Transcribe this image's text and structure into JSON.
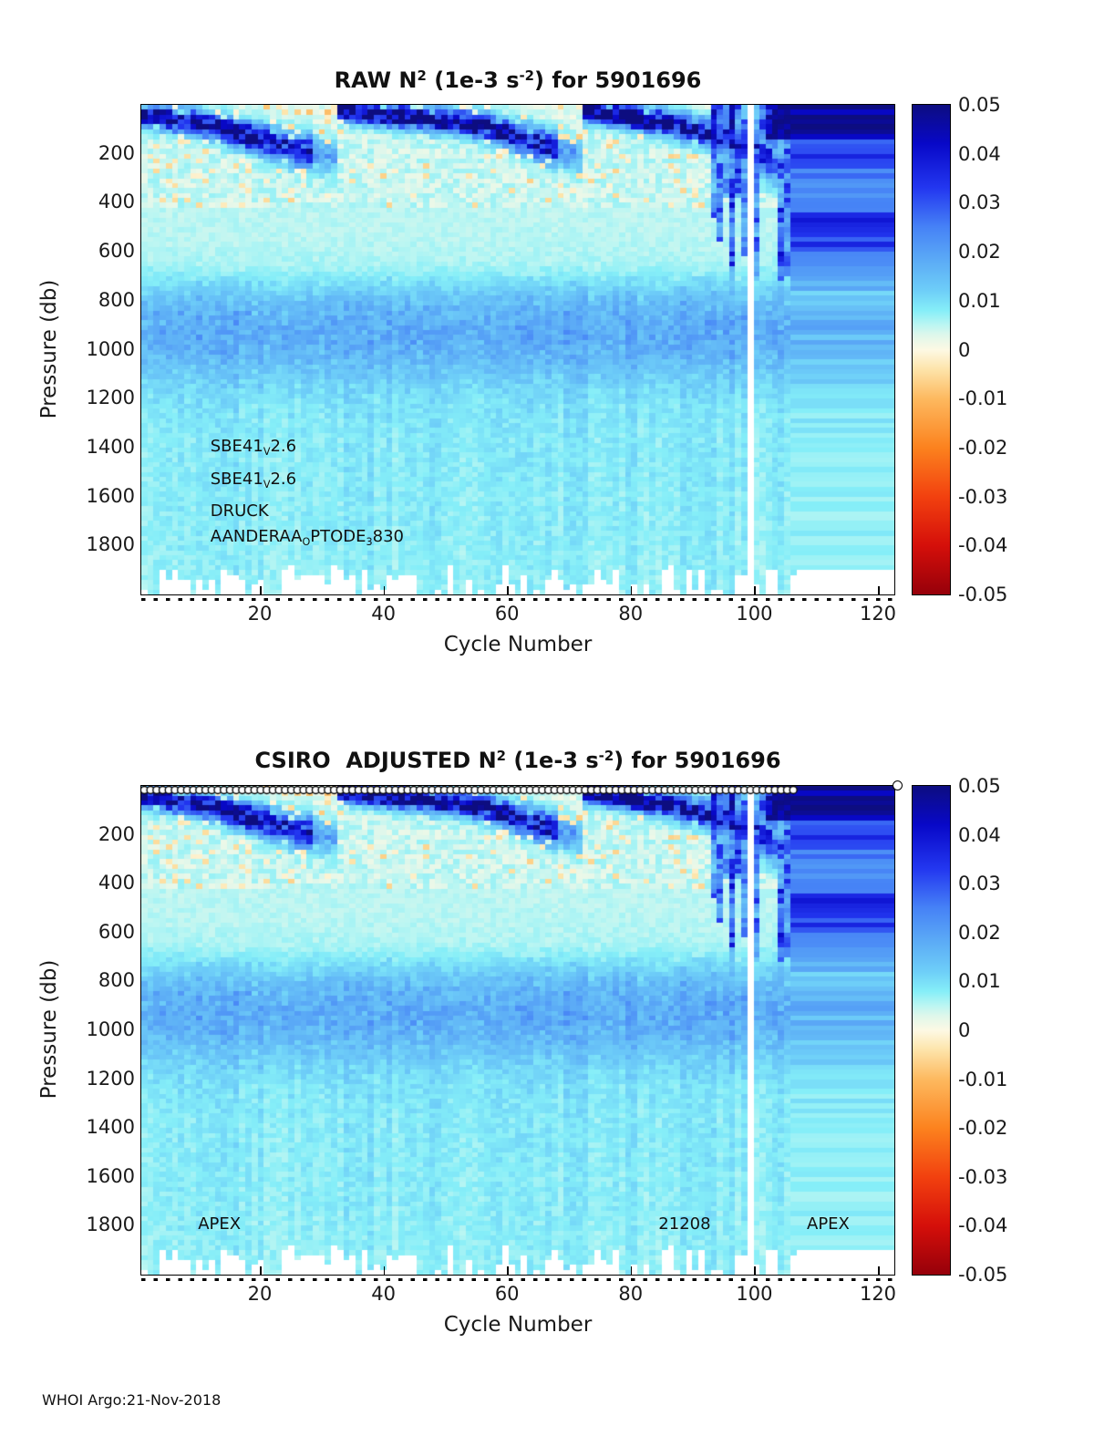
{
  "page": {
    "footer": "WHOI Argo:21-Nov-2018",
    "background": "#ffffff",
    "text_color": "#1a1a1a"
  },
  "axes": {
    "x_label": "Cycle Number",
    "y_label": "Pressure (db)",
    "x_ticks": [
      "20",
      "40",
      "60",
      "80",
      "100",
      "120"
    ],
    "x_tick_values": [
      20,
      40,
      60,
      80,
      100,
      120
    ],
    "y_ticks": [
      "200",
      "400",
      "600",
      "800",
      "1000",
      "1200",
      "1400",
      "1600",
      "1800"
    ],
    "y_tick_values": [
      200,
      400,
      600,
      800,
      1000,
      1200,
      1400,
      1600,
      1800
    ],
    "colorbar_ticks": [
      "0.05",
      "0.04",
      "0.03",
      "0.02",
      "0.01",
      "0",
      "-0.01",
      "-0.02",
      "-0.03",
      "-0.04",
      "-0.05"
    ],
    "colorbar_tick_values": [
      0.05,
      0.04,
      0.03,
      0.02,
      0.01,
      0,
      -0.01,
      -0.02,
      -0.03,
      -0.04,
      -0.05
    ]
  },
  "plots": [
    {
      "id": "raw",
      "title": "RAW N^2^ (1e-3 s^-2^) for 5901696",
      "has_markers": false,
      "annotations": [
        {
          "text": "SBE41~V~2.6",
          "cycle": 12,
          "pressure": 1400
        },
        {
          "text": "SBE41~V~2.6",
          "cycle": 12,
          "pressure": 1533
        },
        {
          "text": "DRUCK",
          "cycle": 12,
          "pressure": 1663
        },
        {
          "text": "AANDERAA~O~PTODE~3~830",
          "cycle": 12,
          "pressure": 1768
        }
      ]
    },
    {
      "id": "adjusted",
      "title": "CSIRO  ADJUSTED N^2^ (1e-3 s^-2^) for 5901696",
      "has_markers": true,
      "marker_symbol": "o",
      "marker_cycle_range": [
        1,
        107
      ],
      "outlier_marker_cycle": 123.5,
      "annotations": [
        {
          "text": "APEX",
          "cycle": 10,
          "pressure": 1800
        },
        {
          "text": "21208",
          "cycle": 84.5,
          "pressure": 1800
        },
        {
          "text": "APEX",
          "cycle": 108.5,
          "pressure": 1800
        }
      ]
    }
  ],
  "chart_data": [
    {
      "type": "heatmap",
      "title": "RAW N2 (1e-3 s-2) for 5901696",
      "xlabel": "Cycle Number",
      "ylabel": "Pressure (db)",
      "value_units": "1e-3 s-2",
      "x_range": [
        1,
        123
      ],
      "y_range": [
        0,
        2000
      ],
      "y_axis_reversed": true,
      "colorbar_range": [
        -0.05,
        0.05
      ],
      "colorbar_ticks": [
        0.05,
        0.04,
        0.03,
        0.02,
        0.01,
        0,
        -0.01,
        -0.02,
        -0.03,
        -0.04,
        -0.05
      ],
      "data_end_cycle": 107,
      "missing_cycles": [
        100
      ],
      "stretched_last_profile_to_cycle": 123,
      "cell_db": 20,
      "colormap_stops": [
        [
          -0.05,
          150,
          0,
          10
        ],
        [
          -0.04,
          213,
          15,
          10
        ],
        [
          -0.03,
          242,
          65,
          15
        ],
        [
          -0.02,
          252,
          130,
          30
        ],
        [
          -0.01,
          253,
          185,
          95
        ],
        [
          -0.004,
          253,
          228,
          170
        ],
        [
          0,
          253,
          249,
          228
        ],
        [
          0.003,
          222,
          247,
          235
        ],
        [
          0.005,
          188,
          246,
          242
        ],
        [
          0.008,
          133,
          238,
          248
        ],
        [
          0.012,
          110,
          206,
          248
        ],
        [
          0.018,
          92,
          172,
          246
        ],
        [
          0.025,
          70,
          130,
          246
        ],
        [
          0.033,
          35,
          55,
          240
        ],
        [
          0.042,
          8,
          8,
          200
        ],
        [
          0.05,
          13,
          13,
          128
        ]
      ],
      "pattern": {
        "pycnocline_points": [
          [
            1,
            40
          ],
          [
            8,
            68
          ],
          [
            14,
            100
          ],
          [
            20,
            140
          ],
          [
            26,
            180
          ],
          [
            31,
            205
          ],
          [
            32,
            208
          ],
          [
            33,
            22
          ],
          [
            40,
            40
          ],
          [
            50,
            62
          ],
          [
            57,
            88
          ],
          [
            62,
            128
          ],
          [
            67,
            172
          ],
          [
            72,
            205
          ],
          [
            73,
            26
          ],
          [
            80,
            48
          ],
          [
            87,
            78
          ],
          [
            92,
            108
          ],
          [
            96,
            140
          ],
          [
            100,
            172
          ],
          [
            103,
            225
          ],
          [
            107,
            300
          ]
        ],
        "weak_band_cycles": [
          [
            29,
            32
          ],
          [
            69,
            72
          ]
        ],
        "deep_band": {
          "center_db": 930,
          "sigma_db": 135,
          "amplitude": 0.0088
        },
        "background": {
          "upper": 0.005,
          "deep": 0.009
        },
        "deep_mixing_after_cycle": 93,
        "surface_navy_cycles": [
          104,
          107
        ],
        "max_depth_base_db": 1870,
        "max_depth_spread_db": 170,
        "seed": 42
      }
    },
    {
      "type": "heatmap",
      "title": "CSIRO ADJUSTED N2 (1e-3 s-2) for 5901696",
      "xlabel": "Cycle Number",
      "ylabel": "Pressure (db)",
      "value_units": "1e-3 s-2",
      "x_range": [
        1,
        123
      ],
      "y_range": [
        0,
        2000
      ],
      "y_axis_reversed": true,
      "colorbar_range": [
        -0.05,
        0.05
      ],
      "colorbar_ticks": [
        0.05,
        0.04,
        0.03,
        0.02,
        0.01,
        0,
        -0.01,
        -0.02,
        -0.03,
        -0.04,
        -0.05
      ],
      "data_end_cycle": 107,
      "missing_cycles": [
        100
      ],
      "stretched_last_profile_to_cycle": 123,
      "cell_db": 20,
      "qc_markers": {
        "symbol": "o",
        "cycles": [
          1,
          107
        ],
        "outlier_cycle": 123.5
      },
      "colormap_stops": [
        [
          -0.05,
          150,
          0,
          10
        ],
        [
          -0.04,
          213,
          15,
          10
        ],
        [
          -0.03,
          242,
          65,
          15
        ],
        [
          -0.02,
          252,
          130,
          30
        ],
        [
          -0.01,
          253,
          185,
          95
        ],
        [
          -0.004,
          253,
          228,
          170
        ],
        [
          0,
          253,
          249,
          228
        ],
        [
          0.003,
          222,
          247,
          235
        ],
        [
          0.005,
          188,
          246,
          242
        ],
        [
          0.008,
          133,
          238,
          248
        ],
        [
          0.012,
          110,
          206,
          248
        ],
        [
          0.018,
          92,
          172,
          246
        ],
        [
          0.025,
          70,
          130,
          246
        ],
        [
          0.033,
          35,
          55,
          240
        ],
        [
          0.042,
          8,
          8,
          200
        ],
        [
          0.05,
          13,
          13,
          128
        ]
      ],
      "pattern": {
        "pycnocline_points": [
          [
            1,
            40
          ],
          [
            8,
            68
          ],
          [
            14,
            100
          ],
          [
            20,
            140
          ],
          [
            26,
            180
          ],
          [
            31,
            205
          ],
          [
            32,
            208
          ],
          [
            33,
            22
          ],
          [
            40,
            40
          ],
          [
            50,
            62
          ],
          [
            57,
            88
          ],
          [
            62,
            128
          ],
          [
            67,
            172
          ],
          [
            72,
            205
          ],
          [
            73,
            26
          ],
          [
            80,
            48
          ],
          [
            87,
            78
          ],
          [
            92,
            108
          ],
          [
            96,
            140
          ],
          [
            100,
            172
          ],
          [
            103,
            225
          ],
          [
            107,
            300
          ]
        ],
        "weak_band_cycles": [
          [
            29,
            32
          ],
          [
            69,
            72
          ]
        ],
        "deep_band": {
          "center_db": 930,
          "sigma_db": 135,
          "amplitude": 0.0088
        },
        "background": {
          "upper": 0.005,
          "deep": 0.009
        },
        "deep_mixing_after_cycle": 93,
        "surface_navy_cycles": [
          104,
          107
        ],
        "max_depth_base_db": 1870,
        "max_depth_spread_db": 170,
        "seed": 42
      }
    }
  ]
}
